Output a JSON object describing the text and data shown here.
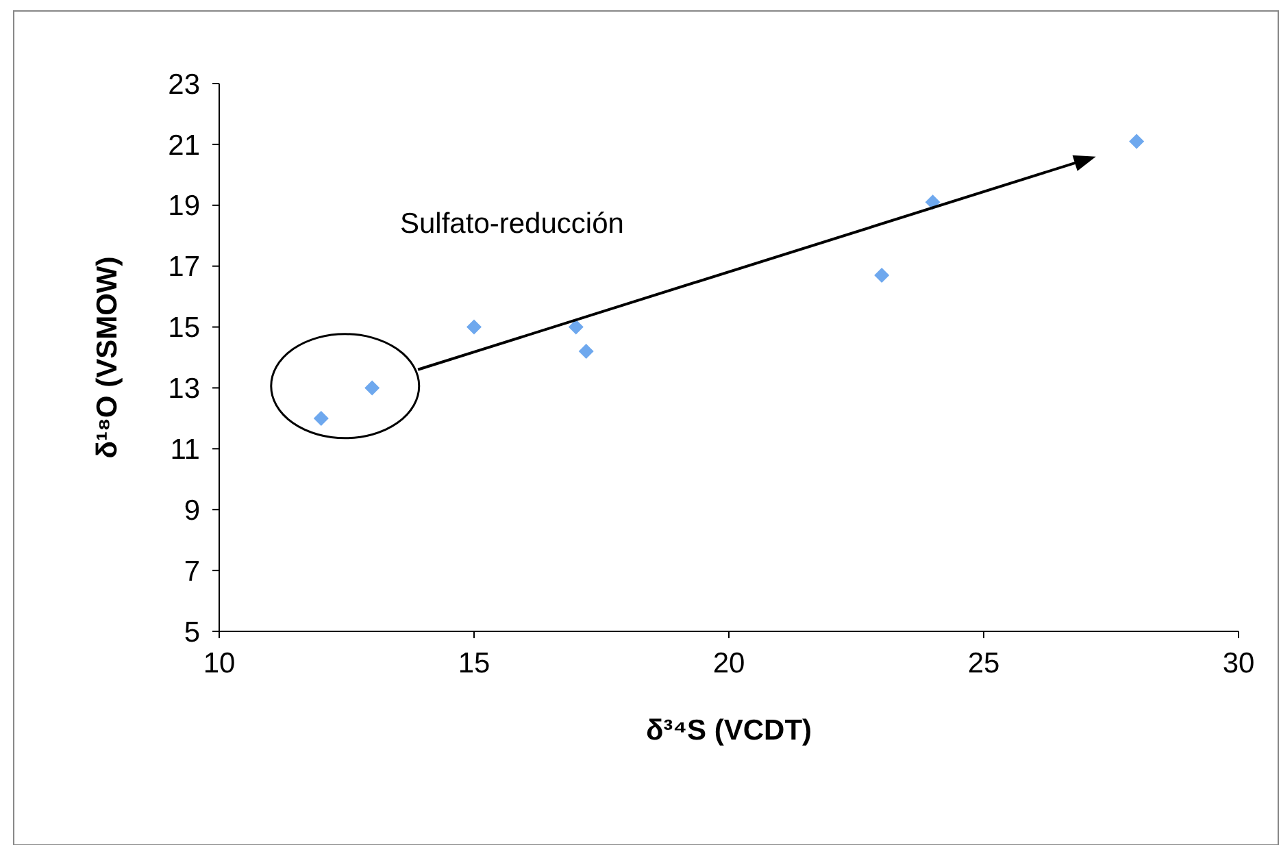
{
  "chart_data": {
    "type": "scatter",
    "xlabel": "δ³⁴S (VCDT)",
    "ylabel": "δ¹⁸O (VSMOW)",
    "x": [
      12,
      13,
      15,
      17,
      17.2,
      23,
      24,
      28
    ],
    "series": [
      {
        "color": "#6ea8ee",
        "values": [
          12,
          13,
          15,
          15,
          14.2,
          16.7,
          19.1,
          21.1
        ]
      }
    ],
    "xlim": [
      10,
      30
    ],
    "xticks": [
      10,
      15,
      20,
      25,
      30
    ],
    "ylim": [
      5,
      23
    ],
    "yticks": [
      5,
      7,
      9,
      11,
      13,
      15,
      17,
      19,
      21,
      23
    ],
    "marker": "diamond",
    "annotations": [
      "Sulfato-reducción"
    ]
  }
}
